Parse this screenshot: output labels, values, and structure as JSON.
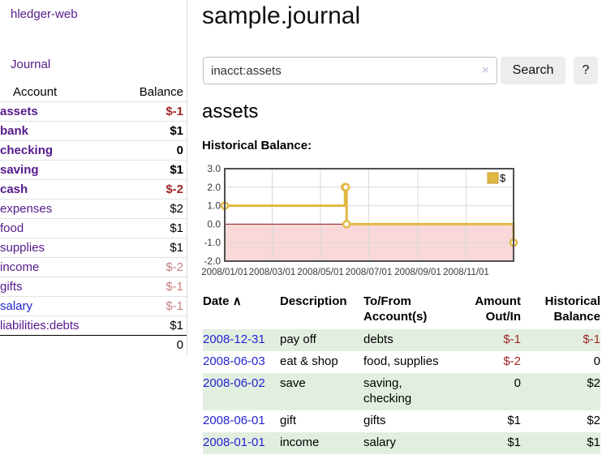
{
  "app": {
    "brand": "hledger-web",
    "nav_journal": "Journal"
  },
  "sidebar": {
    "header": {
      "account": "Account",
      "balance": "Balance"
    },
    "accounts": [
      {
        "name": "assets",
        "balance": "$-1",
        "level": 0,
        "bold": true,
        "balance_class": "neg-strong"
      },
      {
        "name": "bank",
        "balance": "$1",
        "level": 1,
        "bold": true,
        "balance_class": ""
      },
      {
        "name": "checking",
        "balance": "0",
        "level": 2,
        "bold": true,
        "balance_class": ""
      },
      {
        "name": "saving",
        "balance": "$1",
        "level": 2,
        "bold": true,
        "balance_class": ""
      },
      {
        "name": "cash",
        "balance": "$-2",
        "level": 1,
        "bold": true,
        "balance_class": "neg-strong"
      },
      {
        "name": "expenses",
        "balance": "$2",
        "level": 0,
        "bold": false,
        "balance_class": ""
      },
      {
        "name": "food",
        "balance": "$1",
        "level": 1,
        "bold": false,
        "balance_class": ""
      },
      {
        "name": "supplies",
        "balance": "$1",
        "level": 1,
        "bold": false,
        "balance_class": ""
      },
      {
        "name": "income",
        "balance": "$-2",
        "level": 0,
        "bold": false,
        "balance_class": "neg-soft"
      },
      {
        "name": "gifts",
        "balance": "$-1",
        "level": 1,
        "bold": false,
        "balance_class": "neg-soft"
      },
      {
        "name": "salary",
        "balance": "$-1",
        "level": 1,
        "bold": false,
        "balance_class": "neg-soft",
        "link": "blue"
      },
      {
        "name": "liabilities:debts",
        "balance": "$1",
        "level": 0,
        "bold": false,
        "balance_class": ""
      }
    ],
    "total": "0"
  },
  "header": {
    "title": "sample.journal"
  },
  "search": {
    "value": "inacct:assets",
    "clear_icon": "×",
    "button_label": "Search",
    "help_label": "?"
  },
  "main": {
    "account_title": "assets",
    "chart_heading": "Historical Balance:"
  },
  "chart_data": {
    "type": "line",
    "title": "Historical Balance:",
    "xrange": [
      "2008-01-01",
      "2008-12-31"
    ],
    "ylim": [
      -2,
      3
    ],
    "series": [
      {
        "name": "$",
        "step": true,
        "points": [
          [
            "2008-01-01",
            1
          ],
          [
            "2008-06-01",
            2
          ],
          [
            "2008-06-02",
            2
          ],
          [
            "2008-06-03",
            0
          ],
          [
            "2008-12-31",
            -1
          ]
        ]
      }
    ],
    "yticks": [
      {
        "v": 3,
        "label": "3.0"
      },
      {
        "v": 2,
        "label": "2.0"
      },
      {
        "v": 1,
        "label": "1.0"
      },
      {
        "v": 0,
        "label": "0.0"
      },
      {
        "v": -1,
        "label": "-1.0"
      },
      {
        "v": -2,
        "label": "-2.0"
      }
    ],
    "xticks": [
      {
        "pos": "2008-01-01",
        "label": "2008/01/01"
      },
      {
        "pos": "2008-03-01",
        "label": "2008/03/01"
      },
      {
        "pos": "2008-05-01",
        "label": "2008/05/01"
      },
      {
        "pos": "2008-07-01",
        "label": "2008/07/01"
      },
      {
        "pos": "2008-09-01",
        "label": "2008/09/01"
      },
      {
        "pos": "2008-11-01",
        "label": "2008/11/01"
      }
    ],
    "legend": {
      "label": "$",
      "position": "top-right"
    },
    "grid": true
  },
  "register": {
    "sort_icon": "∧",
    "columns": [
      {
        "label": "Date"
      },
      {
        "label": "Description"
      },
      {
        "label": "To/From Account(s)"
      },
      {
        "label": "Amount Out/In"
      },
      {
        "label": "Historical Balance"
      }
    ],
    "rows": [
      {
        "date": "2008-12-31",
        "description": "pay off",
        "accounts": "debts",
        "amount": "$-1",
        "balance": "$-1",
        "amount_neg": true,
        "balance_neg": true
      },
      {
        "date": "2008-06-03",
        "description": "eat & shop",
        "accounts": "food, supplies",
        "amount": "$-2",
        "balance": "0",
        "amount_neg": true,
        "balance_neg": false
      },
      {
        "date": "2008-06-02",
        "description": "save",
        "accounts": "saving, checking",
        "amount": "0",
        "balance": "$2",
        "amount_neg": false,
        "balance_neg": false
      },
      {
        "date": "2008-06-01",
        "description": "gift",
        "accounts": "gifts",
        "amount": "$1",
        "balance": "$2",
        "amount_neg": false,
        "balance_neg": false
      },
      {
        "date": "2008-01-01",
        "description": "income",
        "accounts": "salary",
        "amount": "$1",
        "balance": "$1",
        "amount_neg": false,
        "balance_neg": false
      }
    ]
  },
  "colors": {
    "link_purple": "#551a8b",
    "link_blue": "#2424d0",
    "negative_strong": "#a02626",
    "negative_soft": "#c5807f",
    "row_stripe_green": "#e2efe0",
    "chart_line_gold": "#e2b844",
    "chart_negative_fill": "#f8d8d8",
    "chart_zero_line": "#8b1a1a",
    "chart_border": "#4f4f4f",
    "button_bg": "#ededed"
  }
}
